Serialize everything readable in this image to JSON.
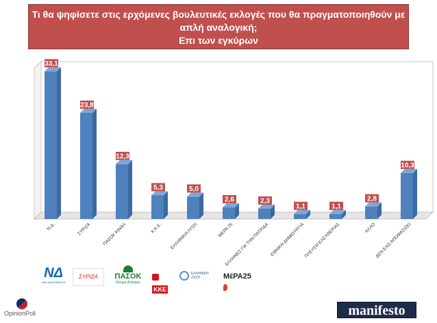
{
  "title": {
    "line1": "Τι θα ψηφίσετε στις ερχόμενες βουλευτικές εκλογές που θα πραγματοποιηθούν με",
    "line2": "απλή αναλογική;",
    "line3": "Επι των εγκύρων"
  },
  "colors": {
    "title_bg": "#c0504d",
    "bar": "#4f81bd",
    "label_bg": "#c0504d"
  },
  "chart_data": {
    "type": "bar",
    "categories": [
      "Ν.Δ.",
      "ΣΥΡΙΖΑ",
      "ΠΑΣΟΚ ΚΙΝΑΛ",
      "Κ.Κ.Ε.",
      "ΕΛΛΗΝΙΚΗ ΛΥΣΗ",
      "ΜΕΡΑ 25",
      "ΕΛΛΗΝΕΣ ΓΙΑ ΤΗΝ ΠΑΤΡΙΔΑ",
      "ΕΘΝΙΚΗ ΔΗΜΙΟΥΡΓΙΑ",
      "ΠΛΕΥΣΗ ΕΛΕΥΘΕΡΙΑΣ",
      "ΑΛΛΟ",
      "ΔΕΝ ΕΧΩ ΑΠΟΦΑΣΙΣΕΙ"
    ],
    "values": [
      33.1,
      23.8,
      12.3,
      5.3,
      5.0,
      2.6,
      2.3,
      1.1,
      1.1,
      2.8,
      10.3
    ],
    "value_labels": [
      "33,1",
      "23,8",
      "12,3",
      "5,3",
      "5,0",
      "2,6",
      "2,3",
      "1,1",
      "1,1",
      "2,8",
      "10,3"
    ],
    "ylim": [
      0,
      35
    ],
    "grid": false,
    "legend": "none"
  },
  "logos": {
    "nd_text": "ΝΔ",
    "nd_sub": "ΝΕΑ ΔΗΜΟΚΡΑΤΙΑ",
    "syriza_text": "ΣΥΡΙΖΑ",
    "pasok_text": "ΠΑΣΟΚ",
    "pasok_sub": "Κίνημα Αλλαγής",
    "kke_text": "ΚΚΕ",
    "el_lysi_text": "ΕΛΛΗΝΙΚΗ ΛΥΣΗ",
    "mera_text": "ΜέΡΑ25"
  },
  "footer": {
    "opinionpoll": "OpinionPoll",
    "manifesto": "manifesto"
  }
}
